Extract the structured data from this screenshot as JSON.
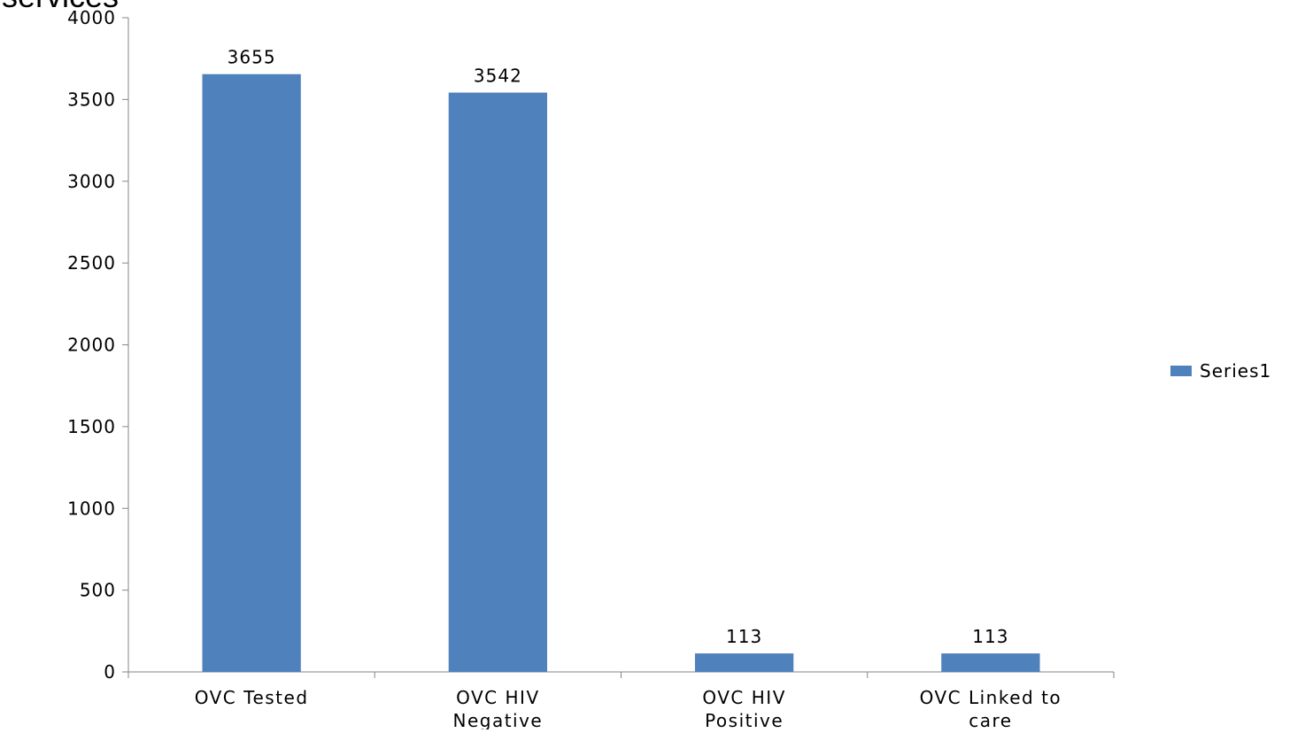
{
  "chart_data": {
    "type": "bar",
    "title": "services",
    "categories": [
      [
        "OVC Tested"
      ],
      [
        "OVC HIV",
        "Negative"
      ],
      [
        "OVC HIV",
        "Positive"
      ],
      [
        "OVC Linked to",
        "care"
      ]
    ],
    "series": [
      {
        "name": "Series1",
        "values": [
          3655,
          3542,
          113,
          113
        ],
        "color": "#4f81bd"
      }
    ],
    "ylim": [
      0,
      4000
    ],
    "yticks": [
      0,
      500,
      1000,
      1500,
      2000,
      2500,
      3000,
      3500,
      4000
    ],
    "grid": false,
    "legend": "right",
    "data_labels": true
  }
}
